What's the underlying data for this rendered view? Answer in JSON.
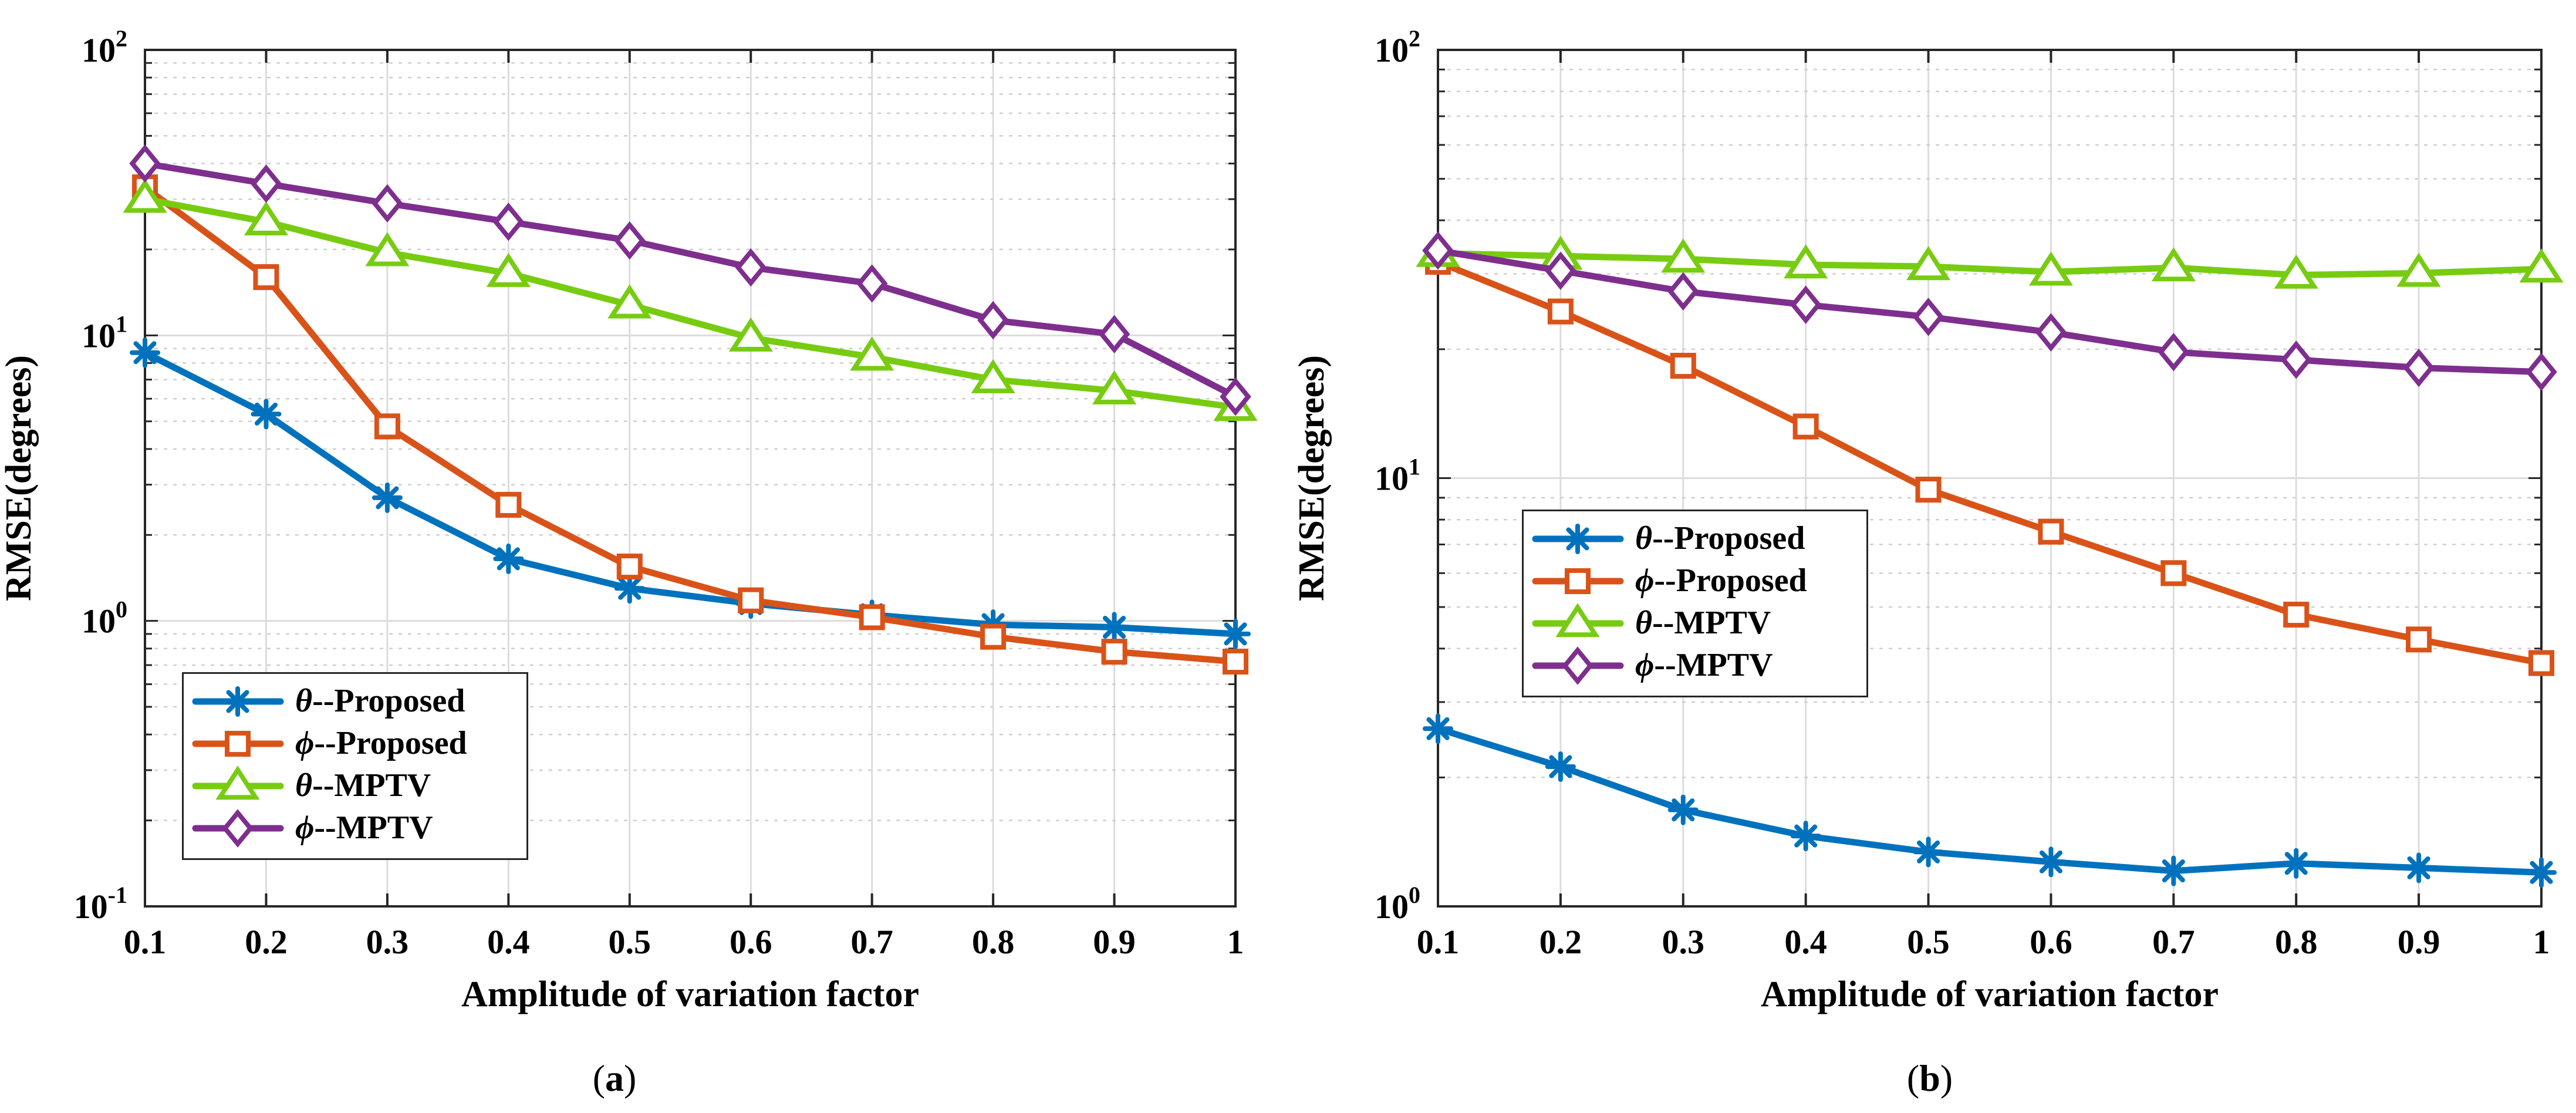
{
  "chart_data": [
    {
      "type": "line",
      "panel_label": "a",
      "xlabel": "Amplitude of variation factor",
      "ylabel": "RMSE(degrees)",
      "yscale": "log",
      "xlim": [
        0.1,
        1
      ],
      "ylim": [
        0.1,
        100
      ],
      "x": [
        0.1,
        0.2,
        0.3,
        0.4,
        0.5,
        0.6,
        0.7,
        0.8,
        0.9,
        1
      ],
      "x_tick_labels": [
        "0.1",
        "0.2",
        "0.3",
        "0.4",
        "0.5",
        "0.6",
        "0.7",
        "0.8",
        "0.9",
        "1"
      ],
      "y_ticks": [
        0.1,
        1,
        10,
        100
      ],
      "y_tick_labels": [
        [
          "10",
          "-1"
        ],
        [
          "10",
          "0"
        ],
        [
          "10",
          "1"
        ],
        [
          "10",
          "2"
        ]
      ],
      "grid": true,
      "legend_position": "bottom-left",
      "series": [
        {
          "name": "θ--Proposed",
          "symbol": "θ",
          "suffix": "--Proposed",
          "marker": "asterisk",
          "color": "#0072BD",
          "values": [
            8.7,
            5.3,
            2.7,
            1.65,
            1.3,
            1.15,
            1.05,
            0.97,
            0.95,
            0.9
          ]
        },
        {
          "name": "ϕ--Proposed",
          "symbol": "ϕ",
          "suffix": "--Proposed",
          "marker": "square",
          "color": "#D95319",
          "values": [
            33,
            16,
            4.8,
            2.55,
            1.55,
            1.18,
            1.03,
            0.88,
            0.78,
            0.72
          ]
        },
        {
          "name": "θ--MPTV",
          "symbol": "θ",
          "suffix": "--MPTV",
          "marker": "triangle",
          "color": "#77CC11",
          "values": [
            30,
            25,
            19.5,
            16.5,
            12.8,
            9.8,
            8.4,
            7.0,
            6.4,
            5.6
          ]
        },
        {
          "name": "ϕ--MPTV",
          "symbol": "ϕ",
          "suffix": "--MPTV",
          "marker": "diamond",
          "color": "#7E2F8E",
          "values": [
            40,
            34,
            29,
            25,
            21.5,
            17.3,
            15.2,
            11.3,
            10.1,
            6.1
          ]
        }
      ]
    },
    {
      "type": "line",
      "panel_label": "b",
      "xlabel": "Amplitude of variation factor",
      "ylabel": "RMSE(degrees)",
      "yscale": "log",
      "xlim": [
        0.1,
        1
      ],
      "ylim": [
        1,
        100
      ],
      "x": [
        0.1,
        0.2,
        0.3,
        0.4,
        0.5,
        0.6,
        0.7,
        0.8,
        0.9,
        1
      ],
      "x_tick_labels": [
        "0.1",
        "0.2",
        "0.3",
        "0.4",
        "0.5",
        "0.6",
        "0.7",
        "0.8",
        "0.9",
        "1"
      ],
      "y_ticks": [
        1,
        10,
        100
      ],
      "y_tick_labels": [
        [
          "10",
          "0"
        ],
        [
          "10",
          "1"
        ],
        [
          "10",
          "2"
        ]
      ],
      "grid": true,
      "legend_position": "center-left",
      "series": [
        {
          "name": "θ--Proposed",
          "symbol": "θ",
          "suffix": "--Proposed",
          "marker": "asterisk",
          "color": "#0072BD",
          "values": [
            2.6,
            2.12,
            1.68,
            1.46,
            1.34,
            1.27,
            1.21,
            1.26,
            1.23,
            1.2
          ]
        },
        {
          "name": "ϕ--Proposed",
          "symbol": "ϕ",
          "suffix": "--Proposed",
          "marker": "square",
          "color": "#D95319",
          "values": [
            32,
            24.5,
            18.3,
            13.2,
            9.4,
            7.5,
            6.0,
            4.8,
            4.2,
            3.7
          ]
        },
        {
          "name": "θ--MPTV",
          "symbol": "θ",
          "suffix": "--MPTV",
          "marker": "triangle",
          "color": "#77CC11",
          "values": [
            33.5,
            33,
            32.5,
            31.5,
            31.2,
            30.3,
            31.0,
            29.8,
            30.1,
            30.8
          ]
        },
        {
          "name": "ϕ--MPTV",
          "symbol": "ϕ",
          "suffix": "--MPTV",
          "marker": "diamond",
          "color": "#7E2F8E",
          "values": [
            34,
            30.5,
            27.3,
            25.4,
            23.8,
            21.9,
            19.7,
            18.9,
            18.1,
            17.7
          ]
        }
      ]
    }
  ]
}
